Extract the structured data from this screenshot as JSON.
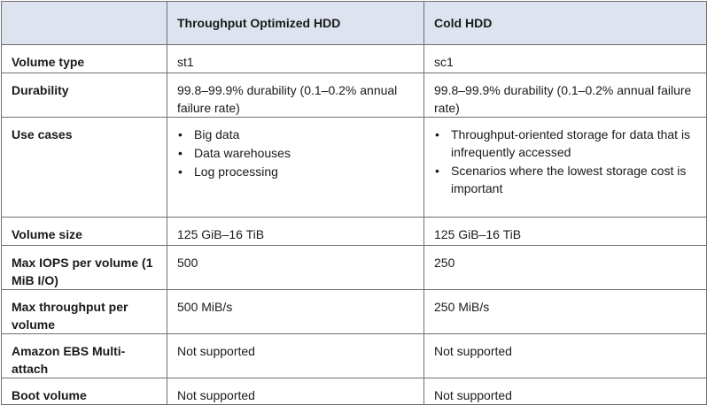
{
  "table": {
    "header": {
      "corner": "",
      "col1": "Throughput Optimized HDD",
      "col2": "Cold HDD"
    },
    "rows": {
      "volume_type": {
        "label": "Volume type",
        "st1": "st1",
        "sc1": "sc1"
      },
      "durability": {
        "label": "Durability",
        "st1": "99.8–99.9% durability (0.1–0.2% annual failure rate)",
        "sc1": "99.8–99.9% durability (0.1–0.2% annual failure rate)"
      },
      "use_cases": {
        "label": "Use cases",
        "st1": [
          "Big data",
          "Data warehouses",
          "Log processing"
        ],
        "sc1": [
          "Throughput-oriented storage for data that is infrequently accessed",
          "Scenarios where the lowest storage cost is important"
        ]
      },
      "volume_size": {
        "label": "Volume size",
        "st1": "125 GiB–16 TiB",
        "sc1": "125 GiB–16 TiB"
      },
      "max_iops": {
        "label": "Max IOPS per volume (1 MiB I/O)",
        "st1": "500",
        "sc1": "250"
      },
      "max_throughput": {
        "label": "Max throughput per volume",
        "st1": "500 MiB/s",
        "sc1": "250 MiB/s"
      },
      "multi_attach": {
        "label": "Amazon EBS Multi-attach",
        "st1": "Not supported",
        "sc1": "Not supported"
      },
      "boot_volume": {
        "label": "Boot volume",
        "st1": "Not supported",
        "sc1": "Not supported"
      }
    },
    "bullet_glyph": "•",
    "colors": {
      "header_bg": "#dde3ef",
      "border": "#6f6f6f",
      "text": "#1a1a1a"
    }
  }
}
